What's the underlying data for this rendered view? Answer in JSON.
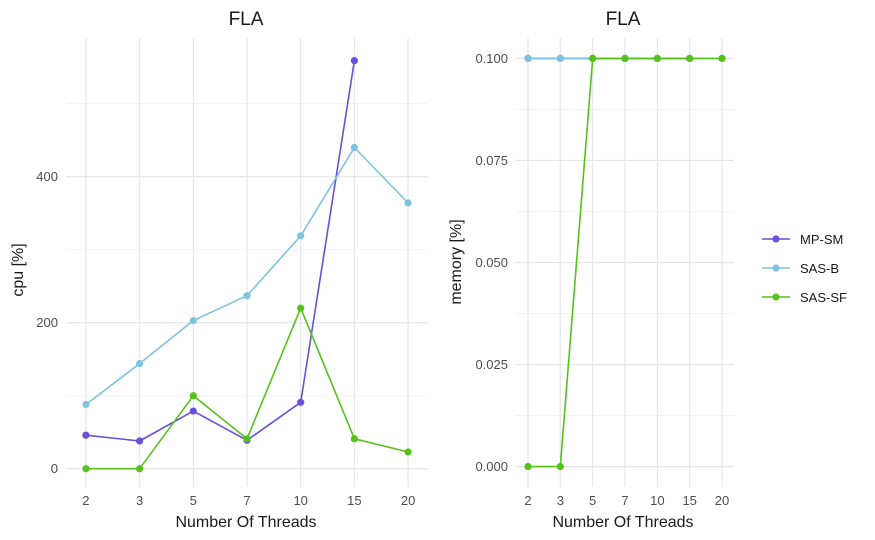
{
  "chart_data": [
    {
      "type": "line",
      "title": "FLA",
      "xlabel": "Number Of Threads",
      "ylabel": "cpu [%]",
      "categories": [
        "2",
        "3",
        "5",
        "7",
        "10",
        "15",
        "20"
      ],
      "y_ticks": [
        0,
        200,
        400
      ],
      "ylim": [
        -25,
        590
      ],
      "grid": true,
      "series": [
        {
          "name": "MP-SM",
          "color": "#6a4fdc",
          "values": [
            46,
            38,
            79,
            39,
            91,
            559,
            null
          ]
        },
        {
          "name": "SAS-B",
          "color": "#7ec3e0",
          "values": [
            88,
            144,
            203,
            237,
            319,
            440,
            364
          ]
        },
        {
          "name": "SAS-SF",
          "color": "#55c21a",
          "values": [
            0,
            0,
            100,
            41,
            220,
            41,
            23
          ]
        }
      ]
    },
    {
      "type": "line",
      "title": "FLA",
      "xlabel": "Number Of Threads",
      "ylabel": "memory [%]",
      "categories": [
        "2",
        "3",
        "5",
        "7",
        "10",
        "15",
        "20"
      ],
      "y_ticks": [
        "0.000",
        "0.025",
        "0.050",
        "0.075",
        "0.100"
      ],
      "ylim": [
        -0.005,
        0.105
      ],
      "grid": true,
      "series": [
        {
          "name": "MP-SM",
          "color": "#6a4fdc",
          "values": [
            0.1,
            0.1,
            0.1,
            0.1,
            0.1,
            0.1,
            null
          ]
        },
        {
          "name": "SAS-B",
          "color": "#7ec3e0",
          "values": [
            0.1,
            0.1,
            0.1,
            0.1,
            0.1,
            0.1,
            0.1
          ]
        },
        {
          "name": "SAS-SF",
          "color": "#55c21a",
          "values": [
            0,
            0,
            0.1,
            0.1,
            0.1,
            0.1,
            0.1
          ]
        }
      ]
    }
  ],
  "legend": {
    "placement": "right",
    "items": [
      {
        "name": "MP-SM",
        "color": "#6a4fdc"
      },
      {
        "name": "SAS-B",
        "color": "#7ec3e0"
      },
      {
        "name": "SAS-SF",
        "color": "#55c21a"
      }
    ]
  }
}
